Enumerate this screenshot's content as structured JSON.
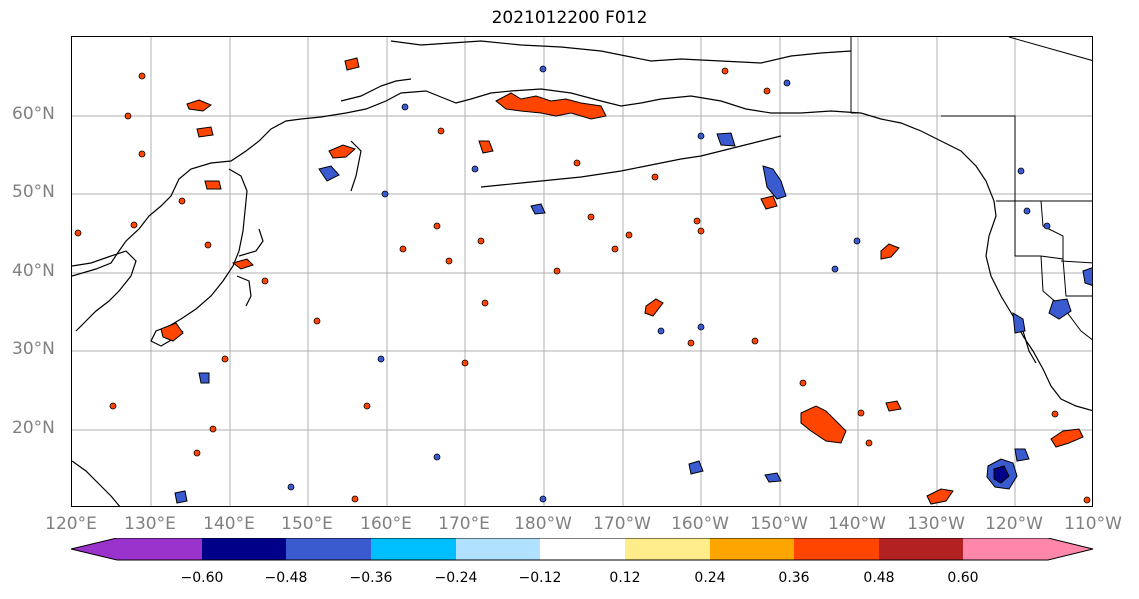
{
  "title": "2021012200 F012",
  "lat_labels": [
    "60°N",
    "50°N",
    "40°N",
    "30°N",
    "20°N"
  ],
  "lon_labels": [
    "120°E",
    "130°E",
    "140°E",
    "150°E",
    "160°E",
    "170°E",
    "180°W",
    "170°W",
    "160°W",
    "150°W",
    "140°W",
    "130°W",
    "120°W",
    "110°W"
  ],
  "colorbar": {
    "ticks": [
      "−0.60",
      "−0.48",
      "−0.36",
      "−0.24",
      "−0.12",
      "0.12",
      "0.24",
      "0.36",
      "0.48",
      "0.60"
    ],
    "colors": [
      "#9a33cc",
      "#000088",
      "#3a5bd0",
      "#00bfff",
      "#b0e2ff",
      "#ffffff",
      "#ffec8b",
      "#ffa500",
      "#ff4500",
      "#b22222",
      "#ff88aa"
    ]
  }
}
